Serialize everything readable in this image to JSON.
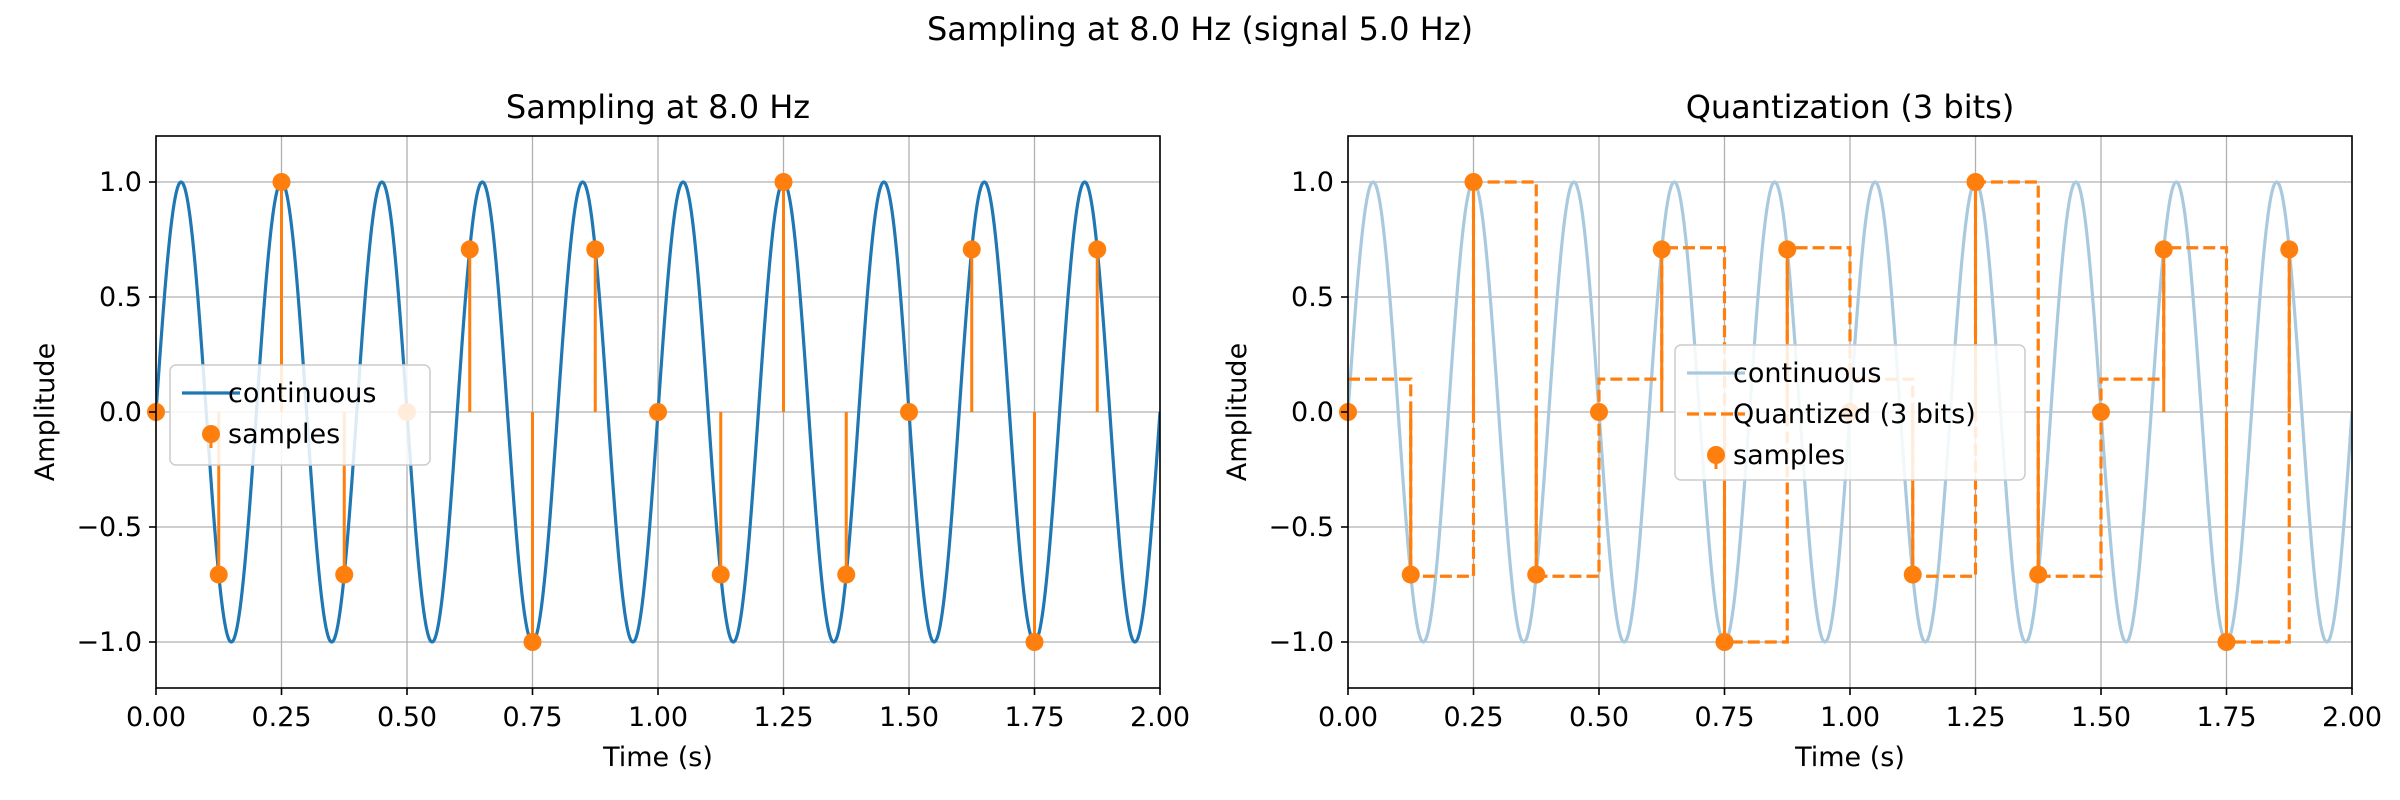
{
  "figure": {
    "suptitle": "Sampling at 8.0 Hz (signal 5.0 Hz)"
  },
  "colors": {
    "continuous": "#1f77b4",
    "continuous_faded": "#a9c9df",
    "samples": "#ff7f0e",
    "grid": "#b0b0b0",
    "axes": "#000000"
  },
  "chart_data": [
    {
      "type": "line",
      "title": "Sampling at 8.0 Hz",
      "xlabel": "Time (s)",
      "ylabel": "Amplitude",
      "xlim": [
        0,
        2
      ],
      "ylim": [
        -1.2,
        1.2
      ],
      "grid": true,
      "legend_position": "center-left",
      "x_ticks": [
        0,
        0.25,
        0.5,
        0.75,
        1.0,
        1.25,
        1.5,
        1.75,
        2.0
      ],
      "x_tick_labels": [
        "0.00",
        "0.25",
        "0.50",
        "0.75",
        "1.00",
        "1.25",
        "1.50",
        "1.75",
        "2.00"
      ],
      "y_ticks": [
        1.0,
        0.5,
        0.0,
        -0.5,
        -1.0
      ],
      "y_tick_labels": [
        "1.0",
        "0.5",
        "0.0",
        "−0.5",
        "−1.0"
      ],
      "continuous": {
        "name": "continuous",
        "function": "sin(2*pi*5*t)",
        "signal_frequency_hz": 5.0
      },
      "samples": {
        "name": "samples",
        "sample_rate_hz": 8.0,
        "x": [
          0,
          0.125,
          0.25,
          0.375,
          0.5,
          0.625,
          0.75,
          0.875,
          1.0,
          1.125,
          1.25,
          1.375,
          1.5,
          1.625,
          1.75,
          1.875
        ],
        "y": [
          0,
          -0.707,
          1.0,
          -0.707,
          0,
          0.707,
          -1.0,
          0.707,
          0,
          -0.707,
          1.0,
          -0.707,
          0,
          0.707,
          -1.0,
          0.707
        ]
      }
    },
    {
      "type": "line",
      "title": "Quantization (3 bits)",
      "xlabel": "Time (s)",
      "ylabel": "Amplitude",
      "xlim": [
        0,
        2
      ],
      "ylim": [
        -1.2,
        1.2
      ],
      "grid": true,
      "legend_position": "center",
      "x_ticks": [
        0,
        0.25,
        0.5,
        0.75,
        1.0,
        1.25,
        1.5,
        1.75,
        2.0
      ],
      "x_tick_labels": [
        "0.00",
        "0.25",
        "0.50",
        "0.75",
        "1.00",
        "1.25",
        "1.50",
        "1.75",
        "2.00"
      ],
      "y_ticks": [
        1.0,
        0.5,
        0.0,
        -0.5,
        -1.0
      ],
      "y_tick_labels": [
        "1.0",
        "0.5",
        "0.0",
        "−0.5",
        "−1.0"
      ],
      "continuous": {
        "name": "continuous",
        "function": "sin(2*pi*5*t)",
        "signal_frequency_hz": 5.0
      },
      "quantized": {
        "name": "Quantized (3 bits)",
        "style": "dashed-step-post",
        "x": [
          0,
          0.125,
          0.25,
          0.375,
          0.5,
          0.625,
          0.75,
          0.875,
          1.0,
          1.125,
          1.25,
          1.375,
          1.5,
          1.625,
          1.75,
          1.875
        ],
        "y": [
          0.143,
          -0.714,
          1.0,
          -0.714,
          0.143,
          0.714,
          -1.0,
          0.714,
          0.143,
          -0.714,
          1.0,
          -0.714,
          0.143,
          0.714,
          -1.0,
          0.714
        ]
      },
      "samples": {
        "name": "samples",
        "sample_rate_hz": 8.0,
        "x": [
          0,
          0.125,
          0.25,
          0.375,
          0.5,
          0.625,
          0.75,
          0.875,
          1.0,
          1.125,
          1.25,
          1.375,
          1.5,
          1.625,
          1.75,
          1.875
        ],
        "y": [
          0,
          -0.707,
          1.0,
          -0.707,
          0,
          0.707,
          -1.0,
          0.707,
          0,
          -0.707,
          1.0,
          -0.707,
          0,
          0.707,
          -1.0,
          0.707
        ]
      }
    }
  ]
}
